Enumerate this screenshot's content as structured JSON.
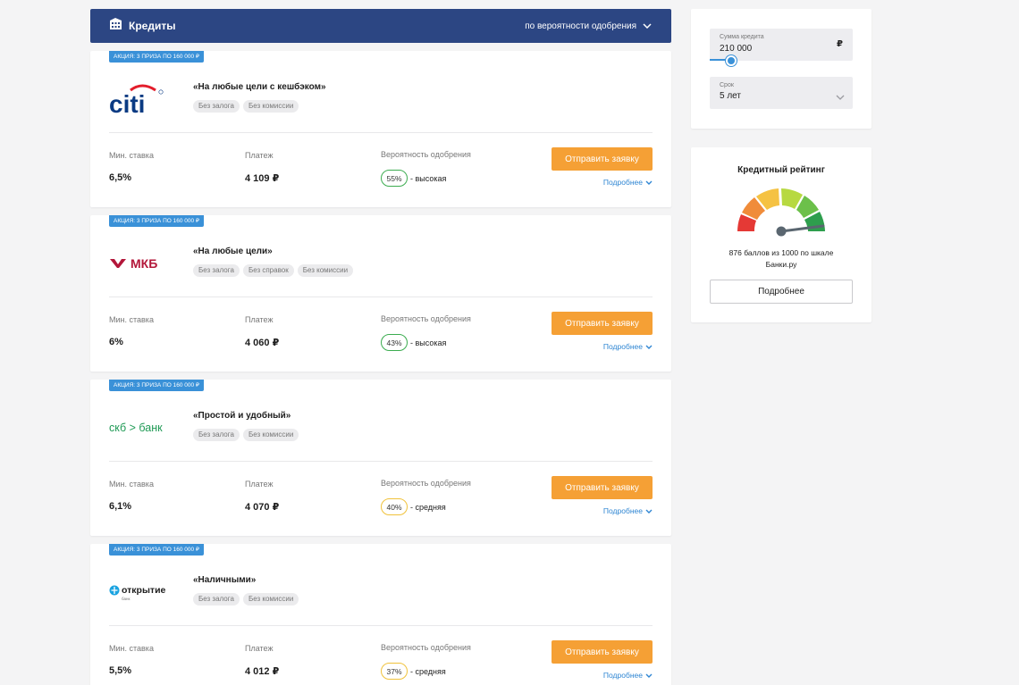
{
  "header": {
    "title": "Кредиты",
    "sort_label": "по вероятности одобрения"
  },
  "labels": {
    "rate": "Мин. ставка",
    "payment": "Платеж",
    "probability": "Вероятность одобрения",
    "apply": "Отправить заявку",
    "more": "Подробнее"
  },
  "offers": [
    {
      "promo": "АКЦИЯ: 3 ПРИЗА ПО 160 000 ₽",
      "bank": "citi",
      "title": "«На любые цели с кешбэком»",
      "tags": [
        "Без залога",
        "Без комиссии"
      ],
      "rate": "6,5%",
      "payment": "4 109 ₽",
      "probability": "55%",
      "probability_text": "- высокая",
      "probability_level": "high"
    },
    {
      "promo": "АКЦИЯ: 3 ПРИЗА ПО 160 000 ₽",
      "bank": "МКБ",
      "title": "«На любые цели»",
      "tags": [
        "Без залога",
        "Без справок",
        "Без комиссии"
      ],
      "rate": "6%",
      "payment": "4 060 ₽",
      "probability": "43%",
      "probability_text": "- высокая",
      "probability_level": "high"
    },
    {
      "promo": "АКЦИЯ: 3 ПРИЗА ПО 160 000 ₽",
      "bank": "скб > банк",
      "title": "«Простой и удобный»",
      "tags": [
        "Без залога",
        "Без комиссии"
      ],
      "rate": "6,1%",
      "payment": "4 070 ₽",
      "probability": "40%",
      "probability_text": "- средняя",
      "probability_level": "medium"
    },
    {
      "promo": "АКЦИЯ: 3 ПРИЗА ПО 160 000 ₽",
      "bank": "открытие",
      "bank_sub": "банк",
      "title": "«Наличными»",
      "tags": [
        "Без залога",
        "Без комиссии"
      ],
      "rate": "5,5%",
      "payment": "4 012 ₽",
      "probability": "37%",
      "probability_text": "- средняя",
      "probability_level": "medium"
    }
  ],
  "calculator": {
    "amount_label": "Сумма кредита",
    "amount_value": "210 000",
    "currency": "₽",
    "term_label": "Срок",
    "term_value": "5 лет"
  },
  "rating": {
    "title": "Кредитный рейтинг",
    "text": "876 баллов из 1000 по шкале Банки.ру",
    "button": "Подробнее",
    "score_fraction": 0.876
  },
  "colors": {
    "header_bg": "#2c4683",
    "accent_blue": "#3a91d8",
    "button_orange": "#f5a035",
    "link_blue": "#2f86d3",
    "prob_high": "#3cac50",
    "prob_medium": "#f0c23b"
  }
}
